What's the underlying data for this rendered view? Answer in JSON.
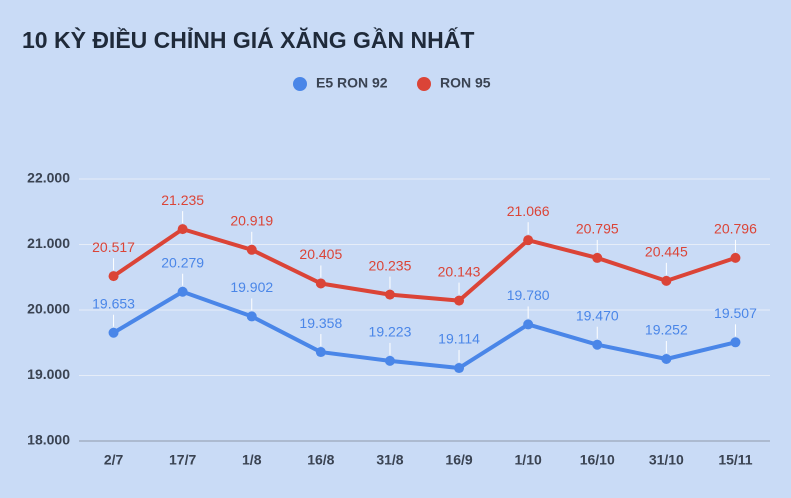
{
  "chart_data": {
    "type": "line",
    "title": "10 KỲ ĐIỀU CHỈNH GIÁ XĂNG GẦN NHẤT",
    "categories": [
      "2/7",
      "17/7",
      "1/8",
      "16/8",
      "31/8",
      "16/9",
      "1/10",
      "16/10",
      "31/10",
      "15/11"
    ],
    "series": [
      {
        "name": "E5 RON 92",
        "color": "#4a86e8",
        "values": [
          19653,
          20279,
          19902,
          19358,
          19223,
          19114,
          19780,
          19470,
          19252,
          19507
        ],
        "value_labels": [
          "19.653",
          "20.279",
          "19.902",
          "19.358",
          "19.223",
          "19.114",
          "19.780",
          "19.470",
          "19.252",
          "19.507"
        ]
      },
      {
        "name": "RON 95",
        "color": "#db4437",
        "values": [
          20517,
          21235,
          20919,
          20405,
          20235,
          20143,
          21066,
          20795,
          20445,
          20796
        ],
        "value_labels": [
          "20.517",
          "21.235",
          "20.919",
          "20.405",
          "20.235",
          "20.143",
          "21.066",
          "20.795",
          "20.445",
          "20.796"
        ]
      }
    ],
    "ylim": [
      18000,
      22000
    ],
    "yticks": [
      {
        "value": 18000,
        "label": "18.000"
      },
      {
        "value": 19000,
        "label": "19.000"
      },
      {
        "value": 20000,
        "label": "20.000"
      },
      {
        "value": 21000,
        "label": "21.000"
      },
      {
        "value": 22000,
        "label": "22.000"
      }
    ],
    "grid": true,
    "legend": "top"
  }
}
